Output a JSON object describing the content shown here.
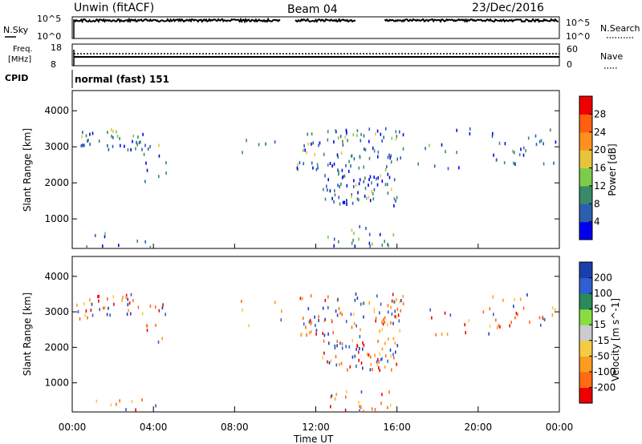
{
  "header": {
    "radar": "Unwin (fitACF)",
    "beam": "Beam 04",
    "date": "23/Dec/2016"
  },
  "noise_panel": {
    "left_label": "N.Sky",
    "right_label": "N.Search",
    "left_ticks": [
      "10^5",
      "10^0"
    ],
    "right_ticks": [
      "10^5",
      "10^0"
    ]
  },
  "freq_panel": {
    "left_label_1": "Freq.",
    "left_label_2": "[MHz]",
    "right_label": "Nave",
    "left_ticks": [
      "18",
      "8"
    ],
    "right_ticks": [
      "60",
      "0"
    ]
  },
  "cpid_panel": {
    "label": "CPID",
    "text": "normal (fast) 151"
  },
  "x_axis": {
    "label": "Time UT",
    "ticks": [
      "00:00",
      "04:00",
      "08:00",
      "12:00",
      "16:00",
      "20:00",
      "00:00"
    ]
  },
  "chart_data": [
    {
      "type": "scatter",
      "panel": "power",
      "ylabel": "Slant Range [km]",
      "yticks": [
        "1000",
        "2000",
        "3000",
        "4000"
      ],
      "ylim": [
        180,
        4560
      ],
      "xlim": [
        0,
        24
      ],
      "colorbar": {
        "label": "Power [dB]",
        "ticks": [
          "4",
          "8",
          "12",
          "16",
          "20",
          "24",
          "28"
        ],
        "colors": [
          "#0000ee",
          "#2a5fb0",
          "#3a8a6a",
          "#7ccc4a",
          "#e8c43a",
          "#ff9020",
          "#ff6010",
          "#ee0000"
        ]
      },
      "clusters": [
        {
          "t0": 0.2,
          "t1": 1.0,
          "r0": 2800,
          "r1": 3450,
          "n": 12
        },
        {
          "t0": 1.2,
          "t1": 3.5,
          "r0": 2900,
          "r1": 3500,
          "n": 26
        },
        {
          "t0": 3.5,
          "t1": 4.6,
          "r0": 2000,
          "r1": 3200,
          "n": 12
        },
        {
          "t0": 0.4,
          "t1": 4.6,
          "r0": 200,
          "r1": 600,
          "n": 9
        },
        {
          "t0": 8.3,
          "t1": 10.4,
          "r0": 2600,
          "r1": 3350,
          "n": 6
        },
        {
          "t0": 11.0,
          "t1": 16.3,
          "r0": 2300,
          "r1": 3500,
          "n": 95
        },
        {
          "t0": 12.3,
          "t1": 16.0,
          "r0": 1350,
          "r1": 2250,
          "n": 70
        },
        {
          "t0": 12.5,
          "t1": 15.8,
          "r0": 180,
          "r1": 800,
          "n": 22
        },
        {
          "t0": 17.0,
          "t1": 20.5,
          "r0": 2300,
          "r1": 3500,
          "n": 12
        },
        {
          "t0": 20.5,
          "t1": 23.8,
          "r0": 2500,
          "r1": 3500,
          "n": 28
        }
      ]
    },
    {
      "type": "scatter",
      "panel": "velocity",
      "ylabel": "Slant Range [km]",
      "yticks": [
        "1000",
        "2000",
        "3000",
        "4000"
      ],
      "ylim": [
        180,
        4560
      ],
      "xlim": [
        0,
        24
      ],
      "colorbar": {
        "label": "Velocity [m s^-1]",
        "ticks": [
          "200",
          "100",
          "50",
          "15",
          "-15",
          "-50",
          "-100",
          "-200"
        ],
        "colors": [
          "#1c3fb0",
          "#2f5fd0",
          "#2a8a5a",
          "#88dd44",
          "#cccccc",
          "#f4cc44",
          "#ff9a22",
          "#ff6a12",
          "#ee0000"
        ]
      },
      "clusters": [
        {
          "t0": 0.2,
          "t1": 1.0,
          "r0": 2800,
          "r1": 3450,
          "n": 12
        },
        {
          "t0": 1.2,
          "t1": 3.5,
          "r0": 2900,
          "r1": 3500,
          "n": 26
        },
        {
          "t0": 3.5,
          "t1": 4.6,
          "r0": 2000,
          "r1": 3200,
          "n": 12
        },
        {
          "t0": 0.4,
          "t1": 4.6,
          "r0": 200,
          "r1": 600,
          "n": 9
        },
        {
          "t0": 8.3,
          "t1": 10.4,
          "r0": 2600,
          "r1": 3350,
          "n": 6
        },
        {
          "t0": 11.0,
          "t1": 16.3,
          "r0": 2300,
          "r1": 3500,
          "n": 95
        },
        {
          "t0": 12.3,
          "t1": 16.0,
          "r0": 1350,
          "r1": 2250,
          "n": 70
        },
        {
          "t0": 12.5,
          "t1": 15.8,
          "r0": 180,
          "r1": 800,
          "n": 22
        },
        {
          "t0": 17.0,
          "t1": 20.5,
          "r0": 2300,
          "r1": 3500,
          "n": 12
        },
        {
          "t0": 20.5,
          "t1": 23.8,
          "r0": 2500,
          "r1": 3500,
          "n": 28
        }
      ]
    }
  ]
}
